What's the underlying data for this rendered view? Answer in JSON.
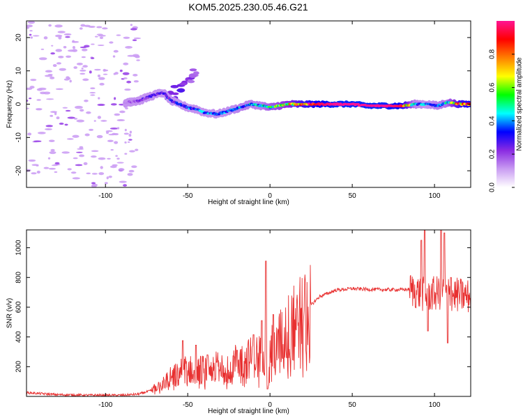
{
  "title": "KOM5.2025.230.05.46.G21",
  "chart_data": [
    {
      "type": "heatmap",
      "name": "spectrogram",
      "xlabel": "Height of straight line (km)",
      "ylabel": "Frequency (Hz)",
      "xlim": [
        -148,
        122
      ],
      "ylim": [
        -25,
        25
      ],
      "xticks": [
        -100,
        -50,
        0,
        50,
        100
      ],
      "xtick_labels": [
        "-100",
        "-50",
        "0",
        "50",
        "100"
      ],
      "yticks": [
        -20,
        -10,
        0,
        10,
        20
      ],
      "ytick_labels": [
        "-20",
        "-10",
        "0",
        "10",
        "20"
      ],
      "signal_track": [
        {
          "x": -88,
          "freq": 0.5,
          "amp": 0.15
        },
        {
          "x": -80,
          "freq": 1.0,
          "amp": 0.2
        },
        {
          "x": -72,
          "freq": 2.5,
          "amp": 0.25
        },
        {
          "x": -65,
          "freq": 3.5,
          "amp": 0.25
        },
        {
          "x": -60,
          "freq": 1.0,
          "amp": 0.3
        },
        {
          "x": -55,
          "freq": 0.0,
          "amp": 0.3
        },
        {
          "x": -50,
          "freq": -1.0,
          "amp": 0.35
        },
        {
          "x": -45,
          "freq": -1.5,
          "amp": 0.35
        },
        {
          "x": -40,
          "freq": -2.5,
          "amp": 0.35
        },
        {
          "x": -32,
          "freq": -3.0,
          "amp": 0.35
        },
        {
          "x": -25,
          "freq": -2.0,
          "amp": 0.35
        },
        {
          "x": -18,
          "freq": -1.0,
          "amp": 0.4
        },
        {
          "x": -12,
          "freq": 0.0,
          "amp": 0.4
        },
        {
          "x": -5,
          "freq": -0.5,
          "amp": 0.4
        },
        {
          "x": 0,
          "freq": -1.0,
          "amp": 0.5
        },
        {
          "x": 5,
          "freq": -0.5,
          "amp": 0.55
        },
        {
          "x": 12,
          "freq": 0.0,
          "amp": 0.65
        },
        {
          "x": 20,
          "freq": 0.0,
          "amp": 0.8
        },
        {
          "x": 30,
          "freq": 0.0,
          "amp": 0.95
        },
        {
          "x": 40,
          "freq": 0.0,
          "amp": 1.0
        },
        {
          "x": 50,
          "freq": 0.0,
          "amp": 1.0
        },
        {
          "x": 60,
          "freq": -0.5,
          "amp": 1.0
        },
        {
          "x": 70,
          "freq": -0.5,
          "amp": 1.0
        },
        {
          "x": 80,
          "freq": -0.5,
          "amp": 0.95
        },
        {
          "x": 88,
          "freq": 0.0,
          "amp": 0.4
        },
        {
          "x": 95,
          "freq": 0.0,
          "amp": 0.35
        },
        {
          "x": 102,
          "freq": -0.5,
          "amp": 0.4
        },
        {
          "x": 108,
          "freq": 0.5,
          "amp": 0.45
        },
        {
          "x": 115,
          "freq": 0.0,
          "amp": 0.8
        },
        {
          "x": 122,
          "freq": 0.0,
          "amp": 0.9
        }
      ],
      "branch": [
        {
          "x": -60,
          "freq": 2.5,
          "amp": 0.2
        },
        {
          "x": -55,
          "freq": 5.0,
          "amp": 0.2
        },
        {
          "x": -50,
          "freq": 7.0,
          "amp": 0.15
        },
        {
          "x": -45,
          "freq": 9.5,
          "amp": 0.1
        }
      ]
    },
    {
      "type": "colorbar",
      "name": "amplitude-colorbar",
      "label": "Normalized spectral amplitude",
      "range": [
        0,
        1
      ],
      "ticks": [
        0.0,
        0.2,
        0.4,
        0.6,
        0.8
      ],
      "tick_labels": [
        "0.0",
        "0.2",
        "0.4",
        "0.6",
        "0.8"
      ],
      "colors": [
        "#ffffff",
        "#c99cf2",
        "#8a2be2",
        "#0000ff",
        "#00ffff",
        "#00ff00",
        "#ffff00",
        "#ff8000",
        "#ff0000",
        "#ff1493"
      ]
    },
    {
      "type": "line",
      "name": "snr",
      "xlabel": "Height of straight line (km)",
      "ylabel": "SNR (v/v)",
      "xlim": [
        -148,
        122
      ],
      "ylim": [
        0,
        1120
      ],
      "xticks": [
        -100,
        -50,
        0,
        50,
        100
      ],
      "xtick_labels": [
        "-100",
        "-50",
        "0",
        "50",
        "100"
      ],
      "yticks": [
        200,
        400,
        600,
        800,
        1000
      ],
      "ytick_labels": [
        "200",
        "400",
        "600",
        "800",
        "1000"
      ],
      "color": "#e83030",
      "envelope": [
        {
          "x": -148,
          "y": 25
        },
        {
          "x": -130,
          "y": 12
        },
        {
          "x": -110,
          "y": 8
        },
        {
          "x": -90,
          "y": 8
        },
        {
          "x": -80,
          "y": 15
        },
        {
          "x": -72,
          "y": 40
        },
        {
          "x": -62,
          "y": 120
        },
        {
          "x": -52,
          "y": 180
        },
        {
          "x": -42,
          "y": 180
        },
        {
          "x": -32,
          "y": 200
        },
        {
          "x": -22,
          "y": 230
        },
        {
          "x": -12,
          "y": 260
        },
        {
          "x": -6,
          "y": 280
        },
        {
          "x": -2,
          "y": 360
        },
        {
          "x": 0,
          "y": 300
        },
        {
          "x": 3,
          "y": 330
        },
        {
          "x": 10,
          "y": 440
        },
        {
          "x": 20,
          "y": 560
        },
        {
          "x": 30,
          "y": 670
        },
        {
          "x": 40,
          "y": 715
        },
        {
          "x": 50,
          "y": 725
        },
        {
          "x": 60,
          "y": 720
        },
        {
          "x": 70,
          "y": 718
        },
        {
          "x": 80,
          "y": 718
        },
        {
          "x": 85,
          "y": 720
        },
        {
          "x": 90,
          "y": 700
        },
        {
          "x": 95,
          "y": 680
        },
        {
          "x": 100,
          "y": 690
        },
        {
          "x": 105,
          "y": 700
        },
        {
          "x": 110,
          "y": 690
        },
        {
          "x": 115,
          "y": 680
        },
        {
          "x": 122,
          "y": 670
        }
      ],
      "spikes": [
        {
          "x": -53,
          "y": 375
        },
        {
          "x": -45,
          "y": 345
        },
        {
          "x": -38,
          "y": 280
        },
        {
          "x": -20,
          "y": 310
        },
        {
          "x": -10,
          "y": 415
        },
        {
          "x": -5,
          "y": 510
        },
        {
          "x": -2.5,
          "y": 910
        },
        {
          "x": -1.5,
          "y": 50
        },
        {
          "x": 2,
          "y": 550
        },
        {
          "x": 92,
          "y": 1050
        },
        {
          "x": 94,
          "y": 1120
        },
        {
          "x": 96,
          "y": 440
        },
        {
          "x": 104,
          "y": 1120
        },
        {
          "x": 106,
          "y": 1100
        },
        {
          "x": 108,
          "y": 360
        },
        {
          "x": 110,
          "y": 800
        }
      ]
    }
  ]
}
